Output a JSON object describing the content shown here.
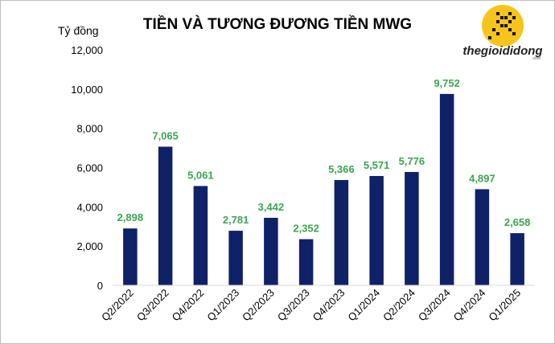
{
  "chart_data": {
    "type": "bar",
    "title": "TIỀN VÀ TƯƠNG ĐƯƠNG TIỀN MWG",
    "ylabel": "Tỷ đồng",
    "xlabel": "",
    "ylim": [
      0,
      12000
    ],
    "yticks": [
      0,
      2000,
      4000,
      6000,
      8000,
      10000,
      12000
    ],
    "ytick_labels": [
      "0",
      "2,000",
      "4,000",
      "6,000",
      "8,000",
      "10,000",
      "12,000"
    ],
    "categories": [
      "Q2/2022",
      "Q3/2022",
      "Q4/2022",
      "Q1/2023",
      "Q2/2023",
      "Q3/2023",
      "Q4/2023",
      "Q1/2024",
      "Q2/2024",
      "Q3/2024",
      "Q4/2024",
      "Q1/2025"
    ],
    "values": [
      2898,
      7065,
      5061,
      2781,
      3442,
      2352,
      5366,
      5571,
      5776,
      9752,
      4897,
      2658
    ],
    "value_labels": [
      "2,898",
      "7,065",
      "5,061",
      "2,781",
      "3,442",
      "2,352",
      "5,366",
      "5,571",
      "5,776",
      "9,752",
      "4,897",
      "2,658"
    ],
    "grid": false,
    "legend": "none",
    "colors": {
      "bar": "#0f2167",
      "data_label": "#3aa650"
    }
  },
  "logo": {
    "text": "thegioididong",
    "subtext": ".com",
    "circle_color": "#f7c41b"
  }
}
